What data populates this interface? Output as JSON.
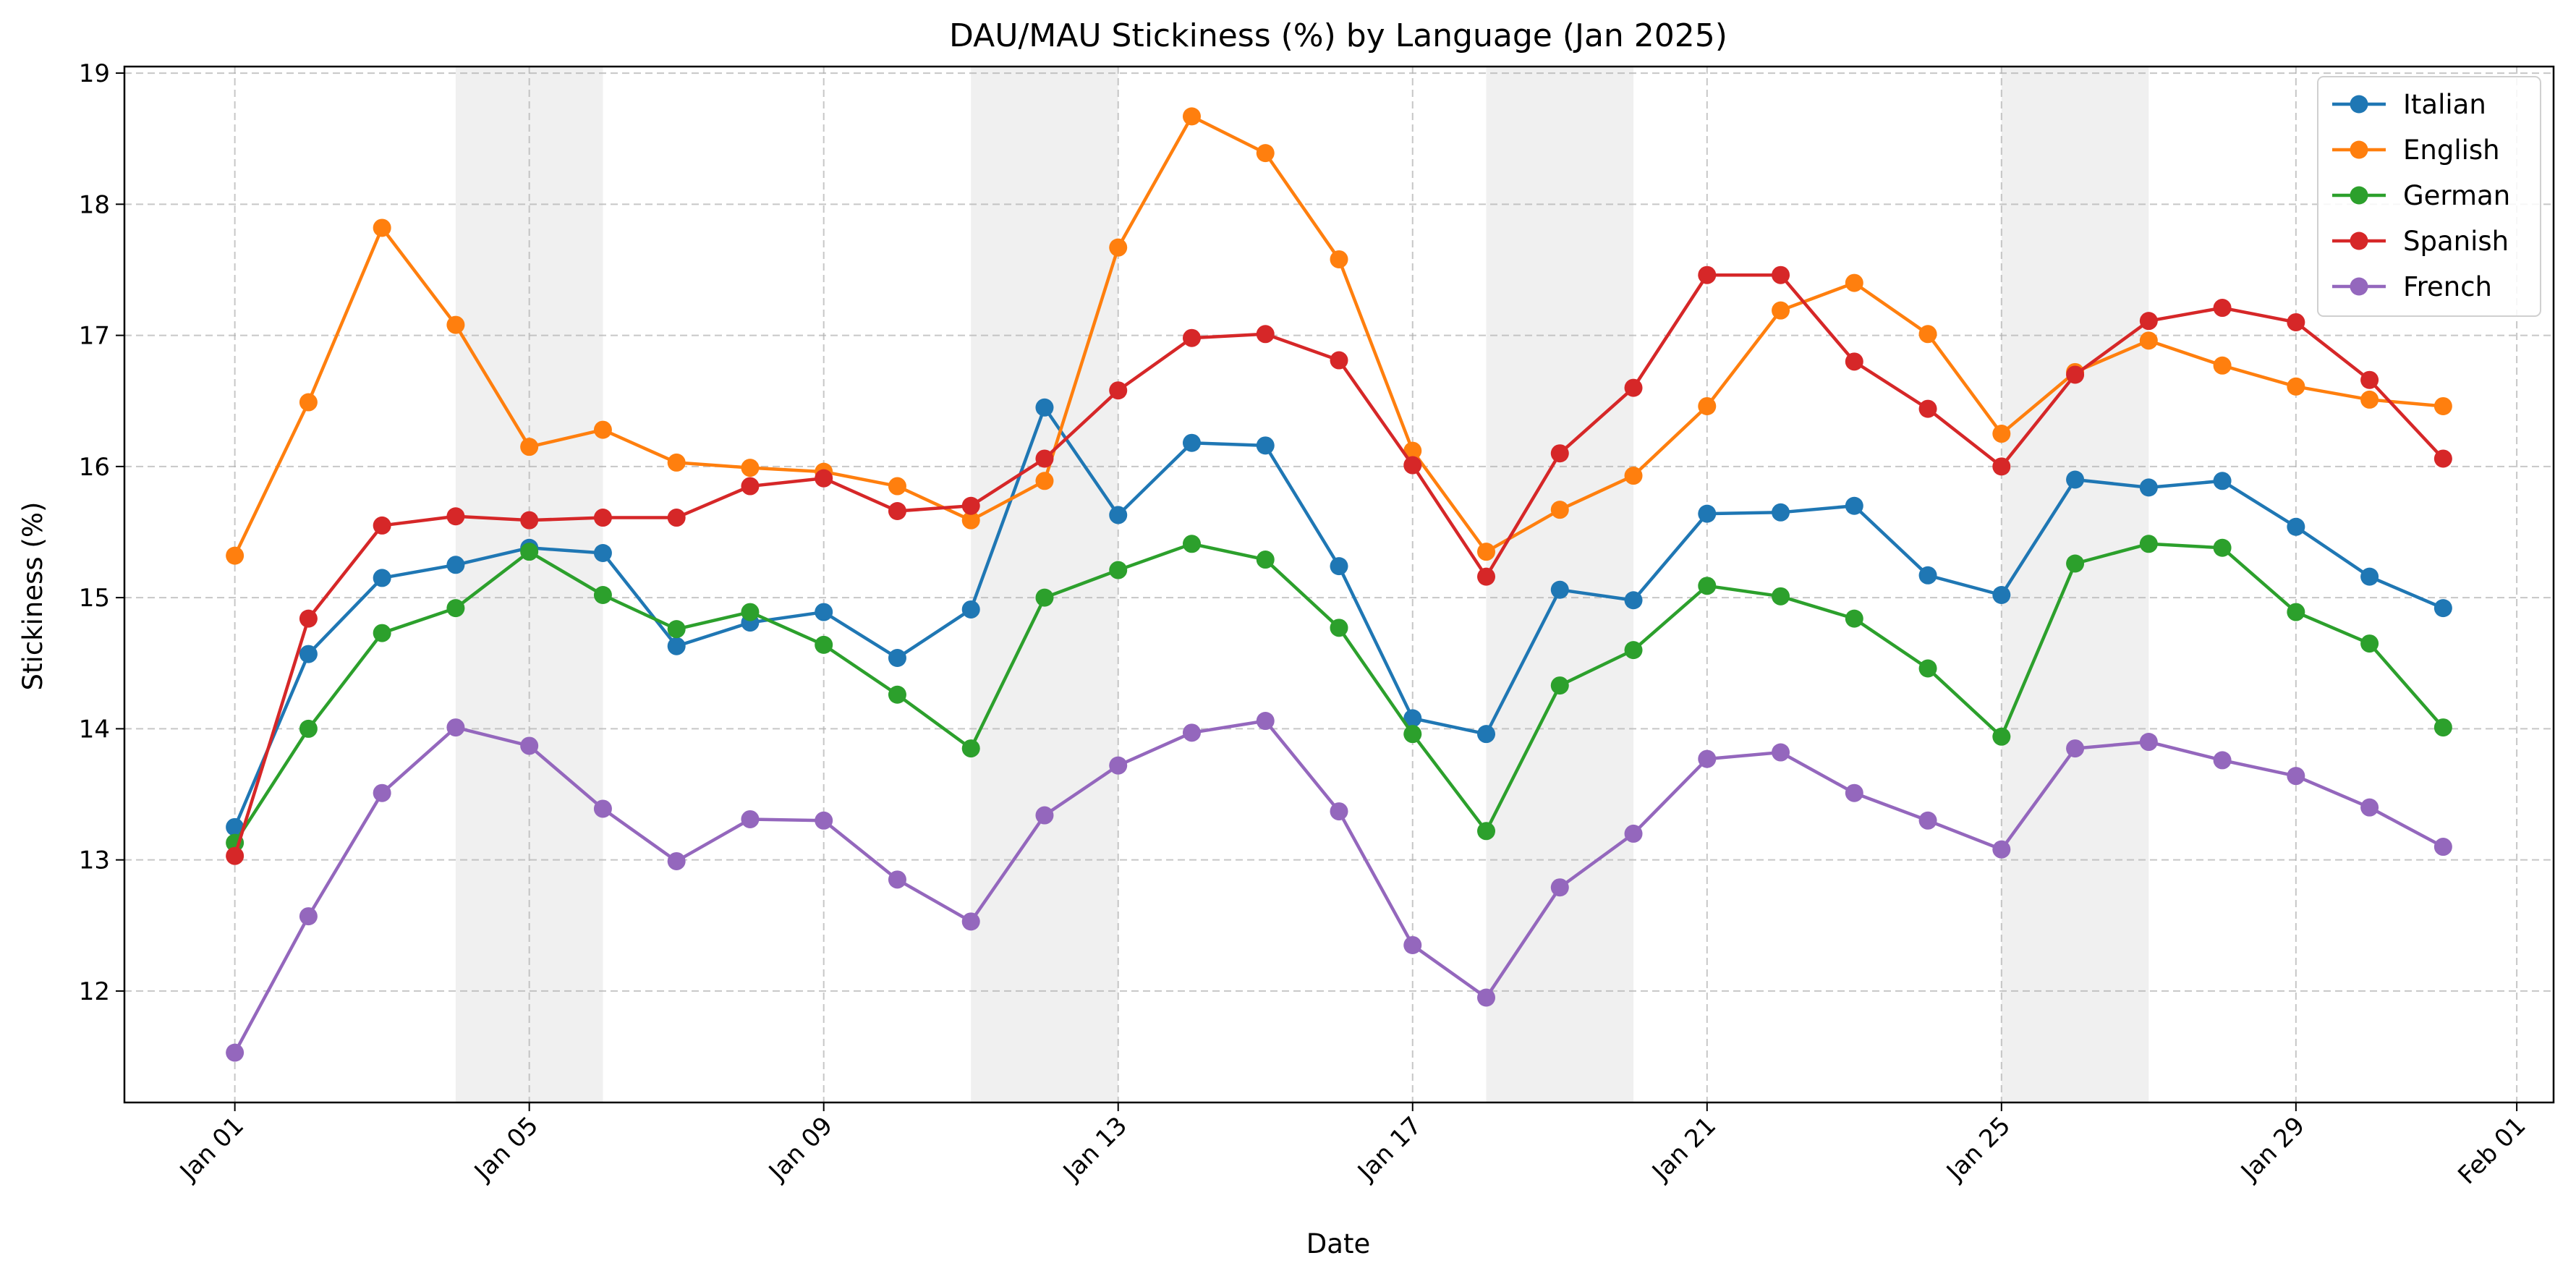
{
  "chart_data": {
    "type": "line",
    "title": "DAU/MAU Stickiness (%) by Language (Jan 2025)",
    "xlabel": "Date",
    "ylabel": "Stickiness (%)",
    "x": [
      "2025-01-01",
      "2025-01-02",
      "2025-01-03",
      "2025-01-04",
      "2025-01-05",
      "2025-01-06",
      "2025-01-07",
      "2025-01-08",
      "2025-01-09",
      "2025-01-10",
      "2025-01-11",
      "2025-01-12",
      "2025-01-13",
      "2025-01-14",
      "2025-01-15",
      "2025-01-16",
      "2025-01-17",
      "2025-01-18",
      "2025-01-19",
      "2025-01-20",
      "2025-01-21",
      "2025-01-22",
      "2025-01-23",
      "2025-01-24",
      "2025-01-25",
      "2025-01-26",
      "2025-01-27",
      "2025-01-28",
      "2025-01-29",
      "2025-01-30",
      "2025-01-31"
    ],
    "xlim": [
      "2024-12-30T12:00",
      "2025-02-01T12:00"
    ],
    "ylim": [
      11.15,
      19.05
    ],
    "x_ticks": [
      {
        "date": "2025-01-01",
        "label": "Jan 01"
      },
      {
        "date": "2025-01-05",
        "label": "Jan 05"
      },
      {
        "date": "2025-01-09",
        "label": "Jan 09"
      },
      {
        "date": "2025-01-13",
        "label": "Jan 13"
      },
      {
        "date": "2025-01-17",
        "label": "Jan 17"
      },
      {
        "date": "2025-01-21",
        "label": "Jan 21"
      },
      {
        "date": "2025-01-25",
        "label": "Jan 25"
      },
      {
        "date": "2025-01-29",
        "label": "Jan 29"
      },
      {
        "date": "2025-02-01",
        "label": "Feb 01"
      }
    ],
    "y_ticks": [
      {
        "value": 12,
        "label": "12"
      },
      {
        "value": 13,
        "label": "13"
      },
      {
        "value": 14,
        "label": "14"
      },
      {
        "value": 15,
        "label": "15"
      },
      {
        "value": 16,
        "label": "16"
      },
      {
        "value": 17,
        "label": "17"
      },
      {
        "value": 18,
        "label": "18"
      },
      {
        "value": 19,
        "label": "19"
      }
    ],
    "grid": true,
    "legend_position": "top-right",
    "shaded_ranges": [
      [
        "2025-01-04",
        "2025-01-06"
      ],
      [
        "2025-01-11",
        "2025-01-13"
      ],
      [
        "2025-01-18",
        "2025-01-20"
      ],
      [
        "2025-01-25",
        "2025-01-27"
      ]
    ],
    "series": [
      {
        "name": "Italian",
        "color": "#1f77b4",
        "values": [
          13.25,
          14.57,
          15.15,
          15.25,
          15.38,
          15.34,
          14.63,
          14.81,
          14.89,
          14.54,
          14.91,
          16.45,
          15.63,
          16.18,
          16.16,
          15.24,
          14.08,
          13.96,
          15.06,
          14.98,
          15.64,
          15.65,
          15.7,
          15.17,
          15.02,
          15.9,
          15.84,
          15.89,
          15.54,
          15.16,
          14.92
        ]
      },
      {
        "name": "English",
        "color": "#ff7f0e",
        "values": [
          15.32,
          16.49,
          17.82,
          17.08,
          16.15,
          16.28,
          16.03,
          15.99,
          15.96,
          15.85,
          15.59,
          15.89,
          17.67,
          18.67,
          18.39,
          17.58,
          16.12,
          15.35,
          15.67,
          15.93,
          16.46,
          17.19,
          17.4,
          17.01,
          16.25,
          16.72,
          16.96,
          16.77,
          16.61,
          16.51,
          16.46
        ]
      },
      {
        "name": "German",
        "color": "#2ca02c",
        "values": [
          13.13,
          14.0,
          14.73,
          14.92,
          15.35,
          15.02,
          14.76,
          14.89,
          14.64,
          14.26,
          13.85,
          15.0,
          15.21,
          15.41,
          15.29,
          14.77,
          13.96,
          13.22,
          14.33,
          14.6,
          15.09,
          15.01,
          14.84,
          14.46,
          13.94,
          15.26,
          15.41,
          15.38,
          14.89,
          14.65,
          14.01
        ]
      },
      {
        "name": "Spanish",
        "color": "#d62728",
        "values": [
          13.03,
          14.84,
          15.55,
          15.62,
          15.59,
          15.61,
          15.61,
          15.85,
          15.91,
          15.66,
          15.7,
          16.06,
          16.58,
          16.98,
          17.01,
          16.81,
          16.01,
          15.16,
          16.1,
          16.6,
          17.46,
          17.46,
          16.8,
          16.44,
          16.0,
          16.7,
          17.11,
          17.21,
          17.1,
          16.66,
          16.06
        ]
      },
      {
        "name": "French",
        "color": "#9467bd",
        "values": [
          11.53,
          12.57,
          13.51,
          14.01,
          13.87,
          13.39,
          12.99,
          13.31,
          13.3,
          12.85,
          12.53,
          13.34,
          13.72,
          13.97,
          14.06,
          13.37,
          12.35,
          11.95,
          12.79,
          13.2,
          13.77,
          13.82,
          13.51,
          13.3,
          13.08,
          13.85,
          13.9,
          13.76,
          13.64,
          13.4,
          13.1
        ]
      }
    ]
  }
}
